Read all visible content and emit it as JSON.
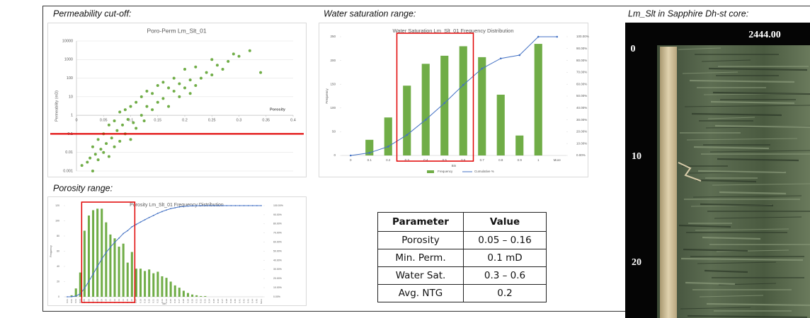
{
  "headings": [
    "Permeability cut-off:",
    "Water saturation range:",
    "Porosity range:",
    "Lm_Slt in Sapphire Dh-st core:"
  ],
  "chart_data": [
    {
      "type": "scatter",
      "title": "Poro-Perm Lm_Slt_01",
      "x_label": "Porosity",
      "y_label": "Permeability (mD)",
      "color": "#70ad47",
      "log_y": true,
      "xaxis_crosses": 1,
      "reference_line": {
        "value": 0.1,
        "color": "#e00000"
      },
      "xlim": [
        0,
        0.4
      ],
      "xticks": [
        0,
        0.05,
        0.1,
        0.15,
        0.2,
        0.25,
        0.3,
        0.35,
        0.4
      ],
      "ylim": [
        0.001,
        10000
      ],
      "yticks": [
        0.001,
        0.01,
        0.1,
        1,
        10,
        100,
        1000,
        10000
      ],
      "grid": true,
      "x": [
        0.01,
        0.02,
        0.025,
        0.03,
        0.03,
        0.035,
        0.04,
        0.04,
        0.045,
        0.05,
        0.05,
        0.055,
        0.06,
        0.06,
        0.065,
        0.07,
        0.07,
        0.075,
        0.08,
        0.08,
        0.085,
        0.09,
        0.09,
        0.095,
        0.1,
        0.1,
        0.105,
        0.11,
        0.11,
        0.12,
        0.12,
        0.125,
        0.13,
        0.13,
        0.14,
        0.14,
        0.15,
        0.15,
        0.16,
        0.16,
        0.17,
        0.17,
        0.18,
        0.18,
        0.19,
        0.19,
        0.2,
        0.2,
        0.21,
        0.21,
        0.22,
        0.22,
        0.23,
        0.24,
        0.25,
        0.25,
        0.26,
        0.27,
        0.28,
        0.29,
        0.3,
        0.32,
        0.34
      ],
      "values": [
        0.002,
        0.003,
        0.005,
        0.001,
        0.02,
        0.008,
        0.004,
        0.05,
        0.015,
        0.01,
        0.1,
        0.03,
        0.006,
        0.3,
        0.06,
        0.02,
        0.5,
        0.15,
        0.04,
        1.5,
        0.3,
        0.1,
        2,
        0.6,
        0.05,
        3,
        0.4,
        0.2,
        5,
        1,
        10,
        0.5,
        3,
        20,
        2,
        15,
        5,
        40,
        8,
        60,
        3,
        30,
        20,
        100,
        10,
        50,
        30,
        300,
        15,
        80,
        40,
        400,
        100,
        200,
        150,
        1000,
        500,
        300,
        800,
        2000,
        1500,
        3000,
        200
      ]
    },
    {
      "type": "histogram",
      "title": "Water Saturation Lm_Slt_01 Frequency Distribution",
      "x_label": "Bin",
      "y_label": "Frequency",
      "highlight": {
        "from": 3,
        "to": 6,
        "color": "#e00000"
      },
      "categories": [
        "0",
        "0.1",
        "0.2",
        "0.3",
        "0.4",
        "0.5",
        "0.6",
        "0.7",
        "0.8",
        "0.9",
        "1",
        "More"
      ],
      "series": [
        {
          "name": "Frequency",
          "color": "#70ad47",
          "values": [
            0,
            33,
            80,
            147,
            193,
            210,
            230,
            207,
            128,
            42,
            235,
            0
          ]
        },
        {
          "name": "Cumulative %",
          "color": "#4472c4",
          "axis": "y2",
          "values": [
            0,
            2.2,
            7.5,
            17.3,
            30.1,
            44.1,
            59.4,
            73.2,
            81.7,
            84.5,
            100,
            100
          ]
        }
      ],
      "ylim": [
        0,
        250
      ],
      "yticks": [
        0,
        50,
        100,
        150,
        200,
        250
      ],
      "y2lim": [
        0,
        100
      ],
      "y2ticks": [
        {
          "value": 0,
          "label": "0.00%"
        },
        {
          "value": 10,
          "label": "10.00%"
        },
        {
          "value": 20,
          "label": "20.00%"
        },
        {
          "value": 30,
          "label": "30.00%"
        },
        {
          "value": 40,
          "label": "40.00%"
        },
        {
          "value": 50,
          "label": "50.00%"
        },
        {
          "value": 60,
          "label": "60.00%"
        },
        {
          "value": 70,
          "label": "70.00%"
        },
        {
          "value": 80,
          "label": "80.00%"
        },
        {
          "value": 90,
          "label": "90.00%"
        },
        {
          "value": 100,
          "label": "100.00%"
        }
      ]
    },
    {
      "type": "histogram",
      "title": "Porosity Lm_Slt_01 Frequency Distribution",
      "x_label": "Bin",
      "y_label": "Frequency",
      "highlight": {
        "from": 4,
        "to": 15,
        "color": "#e00000"
      },
      "categories": [
        "0.01",
        "0.02",
        "0.03",
        "0.04",
        "0.05",
        "0.06",
        "0.07",
        "0.08",
        "0.09",
        "0.10",
        "0.11",
        "0.12",
        "0.13",
        "0.14",
        "0.15",
        "0.16",
        "0.17",
        "0.18",
        "0.19",
        "0.20",
        "0.21",
        "0.22",
        "0.23",
        "0.24",
        "0.25",
        "0.26",
        "0.27",
        "0.28",
        "0.29",
        "0.30",
        "0.31",
        "0.32",
        "0.33",
        "0.34",
        "0.35",
        "0.36",
        "0.37",
        "0.38",
        "0.39",
        "0.40",
        "0.41",
        "0.42",
        "0.43",
        "0.44",
        "0.45",
        "More"
      ],
      "series": [
        {
          "name": "Frequency",
          "color": "#70ad47",
          "values": [
            0,
            2,
            11,
            32,
            87,
            107,
            114,
            116,
            116,
            98,
            82,
            77,
            66,
            70,
            45,
            59,
            37,
            37,
            34,
            36,
            31,
            33,
            27,
            25,
            20,
            15,
            12,
            8,
            5,
            3,
            2,
            1,
            1,
            0,
            0,
            0,
            0,
            0,
            0,
            0,
            0,
            0,
            0,
            0,
            0,
            0
          ]
        },
        {
          "name": "Cumulative %",
          "color": "#4472c4",
          "axis": "y2",
          "values": [
            0,
            0.1,
            0.9,
            3.2,
            9.4,
            17.0,
            25.1,
            33.3,
            41.5,
            48.5,
            54.4,
            59.8,
            64.4,
            69.4,
            72.6,
            76.8,
            79.4,
            82.0,
            84.5,
            87.0,
            89.2,
            91.6,
            93.5,
            95.2,
            96.7,
            97.7,
            98.6,
            99.1,
            99.5,
            99.7,
            99.9,
            99.9,
            100,
            100,
            100,
            100,
            100,
            100,
            100,
            100,
            100,
            100,
            100,
            100,
            100,
            100
          ]
        }
      ],
      "ylim": [
        0,
        120
      ],
      "yticks": [
        0,
        20,
        40,
        60,
        80,
        100,
        120
      ],
      "y2lim": [
        0,
        100
      ],
      "y2ticks": [
        {
          "value": 0,
          "label": "0.00%"
        },
        {
          "value": 10,
          "label": "10.00%"
        },
        {
          "value": 20,
          "label": "20.00%"
        },
        {
          "value": 30,
          "label": "30.00%"
        },
        {
          "value": 40,
          "label": "40.00%"
        },
        {
          "value": 50,
          "label": "50.00%"
        },
        {
          "value": 60,
          "label": "60.00%"
        },
        {
          "value": 70,
          "label": "70.00%"
        },
        {
          "value": 80,
          "label": "80.00%"
        },
        {
          "value": 90,
          "label": "90.00%"
        },
        {
          "value": 100,
          "label": "100.00%"
        }
      ]
    }
  ],
  "table": {
    "header": [
      "Parameter",
      "Value"
    ],
    "rows": [
      [
        "Porosity",
        "0.05 – 0.16"
      ],
      [
        "Min. Perm.",
        "0.1 mD"
      ],
      [
        "Water Sat.",
        "0.3 – 0.6"
      ],
      [
        "Avg. NTG",
        "0.2"
      ]
    ]
  },
  "core_photo": {
    "depth_label": "2444.00",
    "scale": [
      "0",
      "10",
      "20"
    ]
  }
}
